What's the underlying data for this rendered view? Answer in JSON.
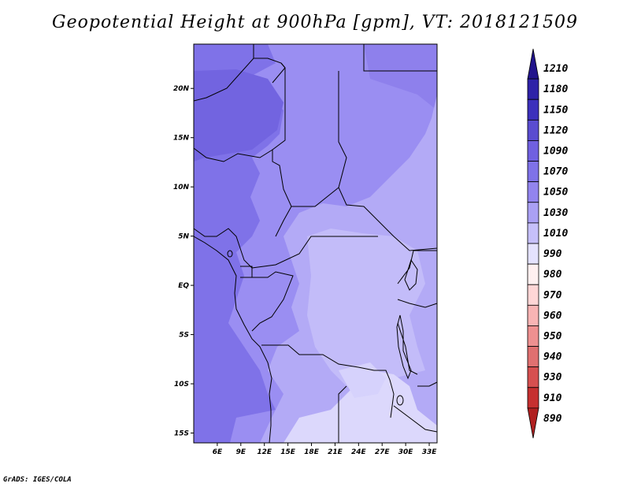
{
  "title": "Geopotential Height at 900hPa [gpm], VT: 2018121509",
  "credit": "GrADS: IGES/COLA",
  "map": {
    "lon_range": [
      3,
      34
    ],
    "lat_range": [
      -16,
      24.5
    ],
    "x_ticks": [
      "6E",
      "9E",
      "12E",
      "15E",
      "18E",
      "21E",
      "24E",
      "27E",
      "30E",
      "33E"
    ],
    "y_ticks": [
      "20N",
      "15N",
      "10N",
      "5N",
      "EQ",
      "5S",
      "10S",
      "15S"
    ],
    "border_color": "#000000"
  },
  "colorbar": {
    "levels": [
      "1210",
      "1180",
      "1150",
      "1120",
      "1090",
      "1070",
      "1050",
      "1030",
      "1010",
      "990",
      "980",
      "970",
      "960",
      "950",
      "940",
      "930",
      "910",
      "890"
    ],
    "colors": [
      "#22148c",
      "#2e22a8",
      "#3c30bc",
      "#5a4cd0",
      "#7060e0",
      "#7f72e8",
      "#9284ee",
      "#aaa0f4",
      "#c6c0fa",
      "#e4e2fe",
      "#fff0f0",
      "#ffd6d6",
      "#f8b4b4",
      "#ee9090",
      "#e07070",
      "#d65050",
      "#c63030",
      "#b02020"
    ]
  }
}
